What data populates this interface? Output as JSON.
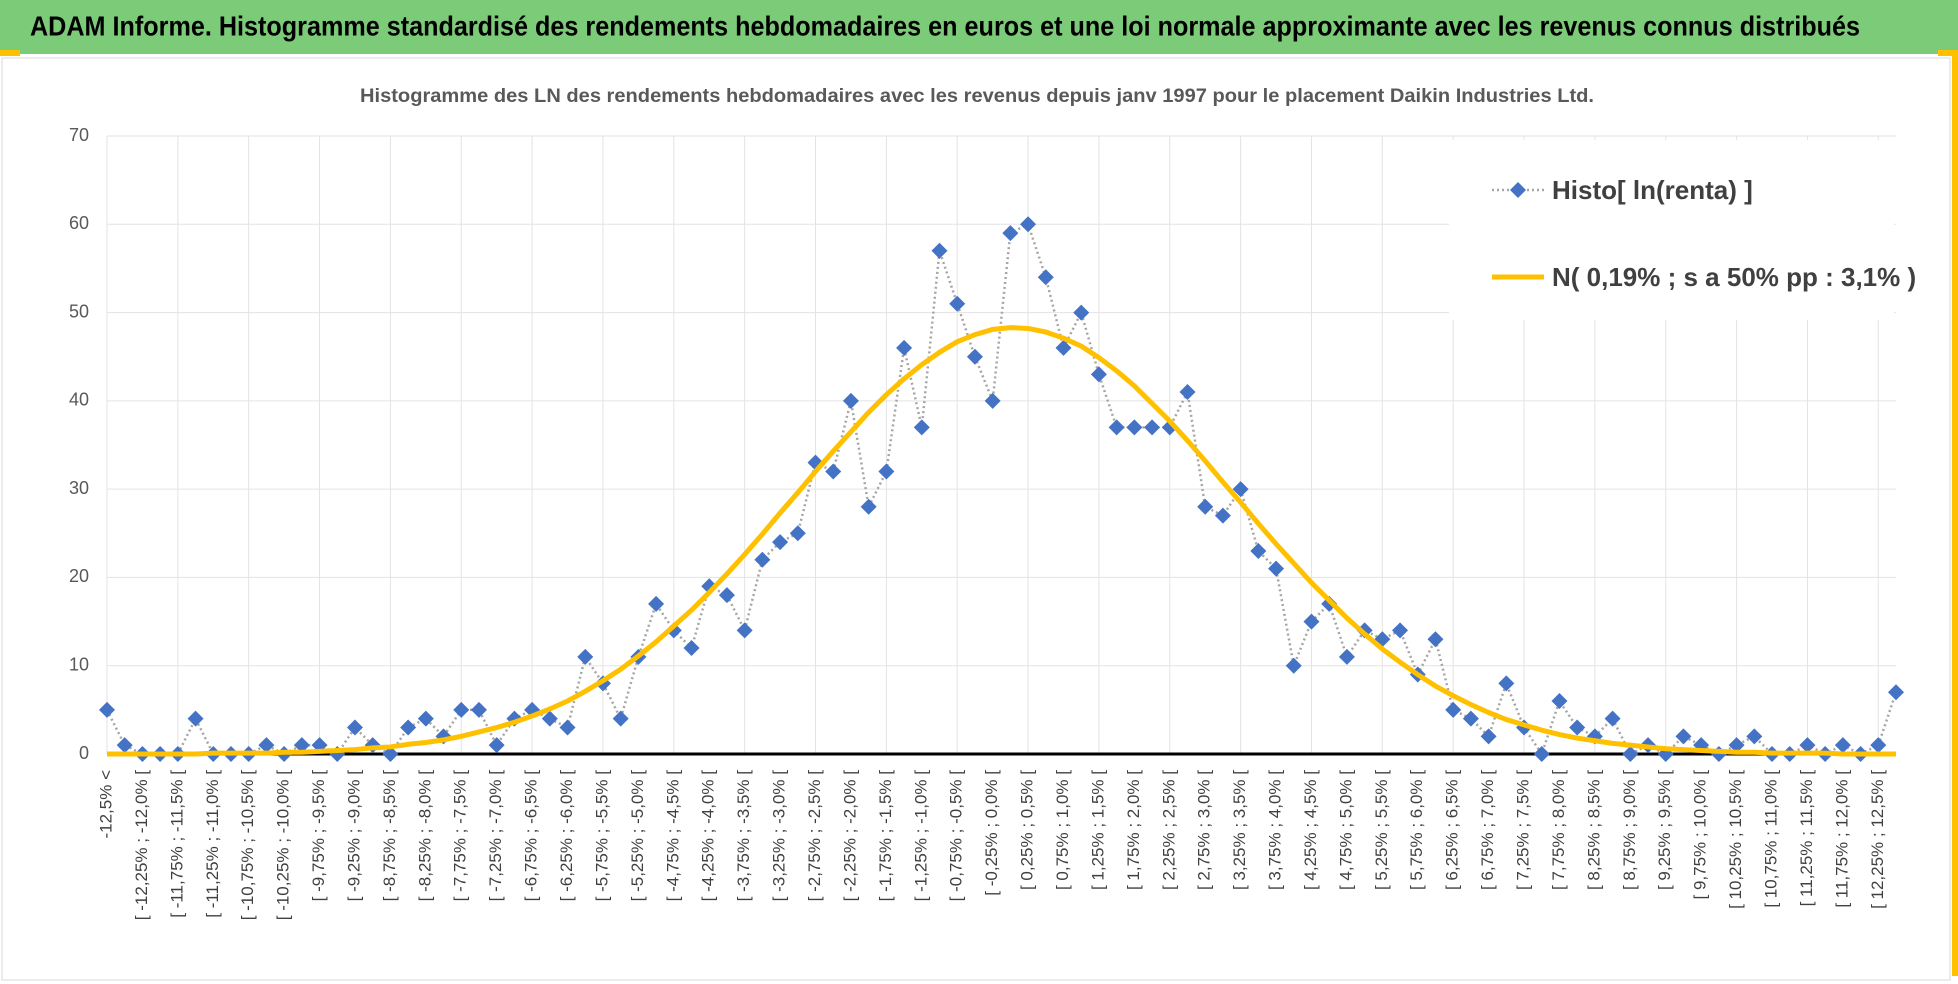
{
  "header_title": "ADAM Informe. Histogramme standardisé des rendements hebdomadaires en euros et une loi normale approximante avec les revenus connus distribués",
  "chart_data": {
    "type": "line",
    "title": "Histogramme des LN des rendements hebdomadaires avec les revenus depuis janv 1997 pour le placement Daikin Industries Ltd.",
    "categories": [
      "-12,5% <",
      null,
      "[ -12,25% ; -12,0% [",
      null,
      "[ -11,75% ; -11,5% [",
      null,
      "[ -11,25% ; -11,0% [",
      null,
      "[ -10,75% ; -10,5% [",
      null,
      "[ -10,25% ; -10,0% [",
      null,
      "[ -9,75% ; -9,5% [",
      null,
      "[ -9,25% ; -9,0% [",
      null,
      "[ -8,75% ; -8,5% [",
      null,
      "[ -8,25% ; -8,0% [",
      null,
      "[ -7,75% ; -7,5% [",
      null,
      "[ -7,25% ; -7,0% [",
      null,
      "[ -6,75% ; -6,5% [",
      null,
      "[ -6,25% ; -6,0% [",
      null,
      "[ -5,75% ; -5,5% [",
      null,
      "[ -5,25% ; -5,0% [",
      null,
      "[ -4,75% ; -4,5% [",
      null,
      "[ -4,25% ; -4,0% [",
      null,
      "[ -3,75% ; -3,5% [",
      null,
      "[ -3,25% ; -3,0% [",
      null,
      "[ -2,75% ; -2,5% [",
      null,
      "[ -2,25% ; -2,0% [",
      null,
      "[ -1,75% ; -1,5% [",
      null,
      "[ -1,25% ; -1,0% [",
      null,
      "[ -0,75% ; -0,5% [",
      null,
      "[ -0,25% ; 0,0% [",
      null,
      "[ 0,25% ; 0,5% [",
      null,
      "[ 0,75% ; 1,0% [",
      null,
      "[ 1,25% ; 1,5% [",
      null,
      "[ 1,75% ; 2,0% [",
      null,
      "[ 2,25% ; 2,5% [",
      null,
      "[ 2,75% ; 3,0% [",
      null,
      "[ 3,25% ; 3,5% [",
      null,
      "[ 3,75% ; 4,0% [",
      null,
      "[ 4,25% ; 4,5% [",
      null,
      "[ 4,75% ; 5,0% [",
      null,
      "[ 5,25% ; 5,5% [",
      null,
      "[ 5,75% ; 6,0% [",
      null,
      "[ 6,25% ; 6,5% [",
      null,
      "[ 6,75% ; 7,0% [",
      null,
      "[ 7,25% ; 7,5% [",
      null,
      "[ 7,75% ; 8,0% [",
      null,
      "[ 8,25% ; 8,5% [",
      null,
      "[ 8,75% ; 9,0% [",
      null,
      "[ 9,25% ; 9,5% [",
      null,
      "[ 9,75% ; 10,0% [",
      null,
      "[ 10,25% ; 10,5% [",
      null,
      "[ 10,75% ; 11,0% [",
      null,
      "[ 11,25% ; 11,5% [",
      null,
      "[ 11,75% ; 12,0% [",
      null,
      "[ 12,25% ; 12,5% [",
      null
    ],
    "series": [
      {
        "name": "Histo[ ln(renta) ]",
        "color": "#4472c4",
        "line_color": "#a5a5a5",
        "line_style": "dotted",
        "marker": "diamond",
        "values": [
          5,
          1,
          0,
          0,
          0,
          4,
          0,
          0,
          0,
          1,
          0,
          1,
          1,
          0,
          3,
          1,
          0,
          3,
          4,
          2,
          5,
          5,
          1,
          4,
          5,
          4,
          3,
          11,
          8,
          4,
          11,
          17,
          14,
          12,
          19,
          18,
          14,
          22,
          24,
          25,
          33,
          32,
          40,
          28,
          32,
          46,
          37,
          57,
          51,
          45,
          40,
          59,
          60,
          54,
          46,
          50,
          43,
          37,
          37,
          37,
          37,
          41,
          28,
          27,
          30,
          23,
          21,
          10,
          15,
          17,
          11,
          14,
          13,
          14,
          9,
          13,
          5,
          4,
          2,
          8,
          3,
          0,
          6,
          3,
          2,
          4,
          0,
          1,
          0,
          2,
          1,
          0,
          1,
          2,
          0,
          0,
          1,
          0,
          1,
          0,
          1,
          7
        ]
      },
      {
        "name": "N( 0,19% ; s a 50% pp : 3,1% )",
        "color": "#ffc000",
        "line_style": "solid",
        "marker": "none",
        "values": [
          0,
          0,
          0,
          0,
          0,
          0,
          0.1,
          0.1,
          0.1,
          0.1,
          0.2,
          0.2,
          0.3,
          0.4,
          0.5,
          0.7,
          0.8,
          1.1,
          1.3,
          1.6,
          2.0,
          2.5,
          3.0,
          3.6,
          4.3,
          5.1,
          6.0,
          7.1,
          8.3,
          9.6,
          11.1,
          12.7,
          14.5,
          16.3,
          18.3,
          20.4,
          22.6,
          24.9,
          27.3,
          29.6,
          32.0,
          34.3,
          36.5,
          38.7,
          40.7,
          42.5,
          44.1,
          45.5,
          46.7,
          47.5,
          48.1,
          48.3,
          48.2,
          47.8,
          47.1,
          46.2,
          44.9,
          43.4,
          41.7,
          39.7,
          37.7,
          35.5,
          33.2,
          30.8,
          28.5,
          26.1,
          23.8,
          21.6,
          19.4,
          17.4,
          15.4,
          13.6,
          11.9,
          10.4,
          9.0,
          7.7,
          6.6,
          5.6,
          4.7,
          3.9,
          3.3,
          2.7,
          2.2,
          1.8,
          1.5,
          1.2,
          1.0,
          0.8,
          0.6,
          0.5,
          0.4,
          0.3,
          0.2,
          0.2,
          0.1,
          0.1,
          0.1,
          0.1,
          0,
          0,
          0,
          0
        ]
      }
    ],
    "ylim": [
      0,
      70
    ],
    "yticks": [
      0,
      10,
      20,
      30,
      40,
      50,
      60,
      70
    ],
    "grid": true,
    "legend": "top-right"
  }
}
